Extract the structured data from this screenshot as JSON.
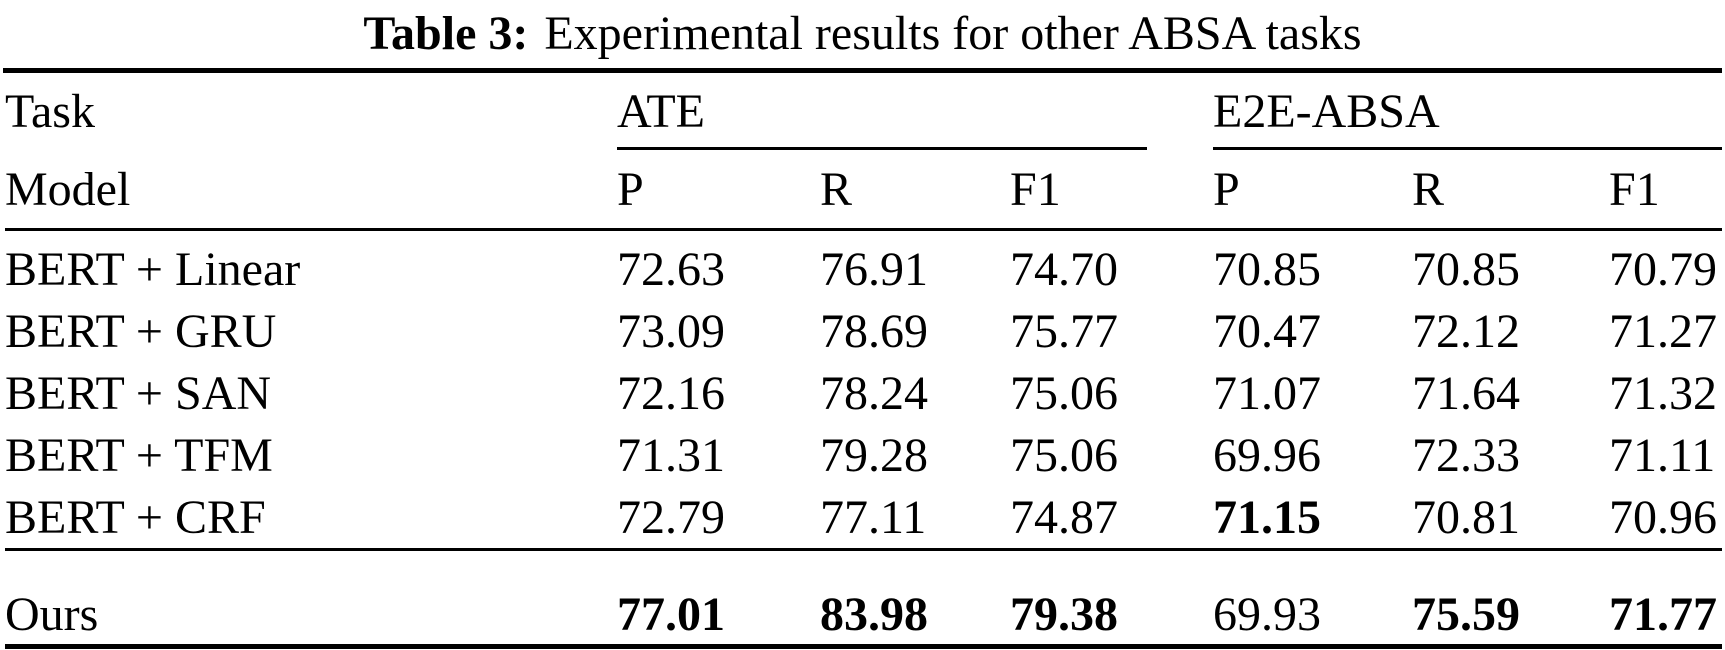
{
  "title": {
    "prefix": "Table 3:",
    "text": "Experimental results for other ABSA tasks"
  },
  "header": {
    "task_label": "Task",
    "model_label": "Model",
    "groups": [
      {
        "label": "ATE"
      },
      {
        "label": "E2E-ABSA"
      }
    ],
    "metrics": [
      "P",
      "R",
      "F1",
      "P",
      "R",
      "F1"
    ]
  },
  "rows": [
    {
      "model": "BERT + Linear",
      "ate_p": "72.63",
      "ate_r": "76.91",
      "ate_f1": "74.70",
      "e2e_p": "70.85",
      "e2e_r": "70.85",
      "e2e_f1": "70.79"
    },
    {
      "model": "BERT + GRU",
      "ate_p": "73.09",
      "ate_r": "78.69",
      "ate_f1": "75.77",
      "e2e_p": "70.47",
      "e2e_r": "72.12",
      "e2e_f1": "71.27"
    },
    {
      "model": "BERT + SAN",
      "ate_p": "72.16",
      "ate_r": "78.24",
      "ate_f1": "75.06",
      "e2e_p": "71.07",
      "e2e_r": "71.64",
      "e2e_f1": "71.32"
    },
    {
      "model": "BERT + TFM",
      "ate_p": "71.31",
      "ate_r": "79.28",
      "ate_f1": "75.06",
      "e2e_p": "69.96",
      "e2e_r": "72.33",
      "e2e_f1": "71.11"
    },
    {
      "model": "BERT + CRF",
      "ate_p": "72.79",
      "ate_r": "77.11",
      "ate_f1": "74.87",
      "e2e_p": "71.15",
      "e2e_r": "70.81",
      "e2e_f1": "70.96"
    }
  ],
  "ours": {
    "model": "Ours",
    "ate_p": "77.01",
    "ate_r": "83.98",
    "ate_f1": "79.38",
    "e2e_p": "69.93",
    "e2e_r": "75.59",
    "e2e_f1": "71.77"
  }
}
